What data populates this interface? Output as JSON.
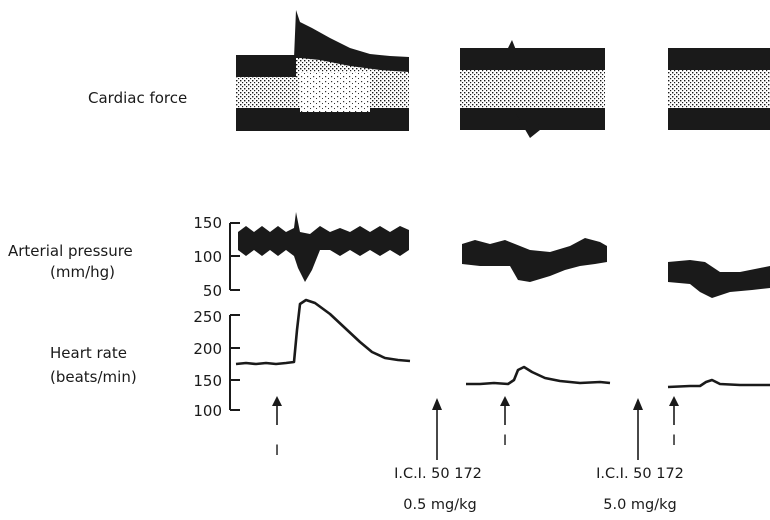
{
  "labels": {
    "cardiac_force": "Cardiac force",
    "arterial_pressure": "Arterial pressure",
    "arterial_pressure_unit": "(mm/hg)",
    "heart_rate": "Heart rate",
    "heart_rate_unit": "(beats/min)"
  },
  "pressure_axis": {
    "ticks": [
      "150",
      "100",
      "50"
    ]
  },
  "heart_rate_axis": {
    "ticks": [
      "250",
      "200",
      "150",
      "100"
    ]
  },
  "stimulus_label": "I",
  "drug_annotations": [
    {
      "drug": "I.C.I. 50 172",
      "dose": "0.5 mg/kg"
    },
    {
      "drug": "I.C.I. 50 172",
      "dose": "5.0 mg/kg"
    }
  ],
  "colors": {
    "ink": "#1a1a1a",
    "background": "#ffffff"
  }
}
